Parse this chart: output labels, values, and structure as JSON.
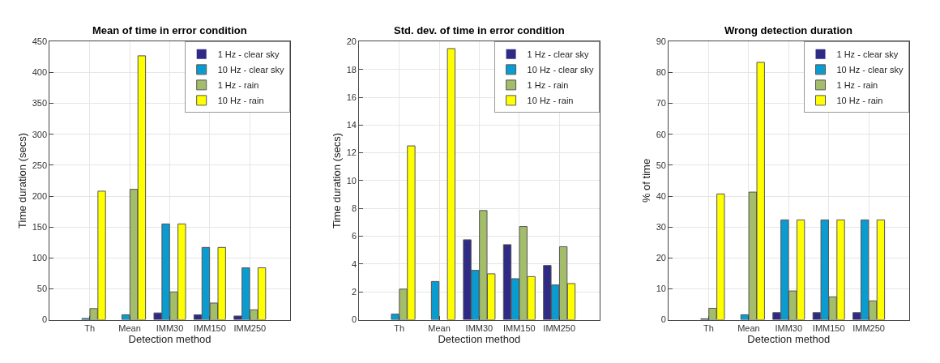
{
  "chart_data": [
    {
      "type": "bar",
      "title": "Mean of time in error condition",
      "xlabel": "Detection method",
      "ylabel": "Time duration (secs)",
      "categories": [
        "Th",
        "Mean",
        "IMM30",
        "IMM150",
        "IMM250"
      ],
      "ylim": [
        0,
        450
      ],
      "yticks": [
        0,
        50,
        100,
        150,
        200,
        250,
        300,
        350,
        400,
        450
      ],
      "grid": true,
      "legend": "top right",
      "series": [
        {
          "name": "1 Hz - clear sky",
          "color": "#2e2a86",
          "values": [
            0,
            0,
            11,
            8,
            6
          ]
        },
        {
          "name": "10 Hz - clear sky",
          "color": "#0a9bd0",
          "values": [
            2,
            8,
            155,
            117,
            84
          ]
        },
        {
          "name": "1 Hz - rain",
          "color": "#a3bd6a",
          "values": [
            18,
            211,
            45,
            27,
            16
          ]
        },
        {
          "name": "10 Hz - rain",
          "color": "#ffff00",
          "values": [
            208,
            427,
            155,
            117,
            84
          ]
        }
      ]
    },
    {
      "type": "bar",
      "title": "Std. dev. of time in error condition",
      "xlabel": "Detection method",
      "ylabel": "Time duration (secs)",
      "categories": [
        "Th",
        "Mean",
        "IMM30",
        "IMM150",
        "IMM250"
      ],
      "ylim": [
        0,
        20
      ],
      "yticks": [
        0,
        2,
        4,
        6,
        8,
        10,
        12,
        14,
        16,
        18,
        20
      ],
      "grid": true,
      "legend": "top right",
      "series": [
        {
          "name": "1 Hz - clear sky",
          "color": "#2e2a86",
          "values": [
            0,
            0,
            5.75,
            5.4,
            3.9
          ]
        },
        {
          "name": "10 Hz - clear sky",
          "color": "#0a9bd0",
          "values": [
            0.4,
            2.75,
            3.55,
            2.95,
            2.5
          ]
        },
        {
          "name": "1 Hz - rain",
          "color": "#a3bd6a",
          "values": [
            2.2,
            0,
            7.85,
            6.7,
            5.25
          ]
        },
        {
          "name": "10 Hz - rain",
          "color": "#ffff00",
          "values": [
            12.5,
            19.5,
            3.3,
            3.1,
            2.6
          ]
        }
      ]
    },
    {
      "type": "bar",
      "title": "Wrong detection duration",
      "xlabel": "Detection method",
      "ylabel": "% of time",
      "categories": [
        "Th",
        "Mean",
        "IMM30",
        "IMM150",
        "IMM250"
      ],
      "ylim": [
        0,
        90
      ],
      "yticks": [
        0,
        10,
        20,
        30,
        40,
        50,
        60,
        70,
        80,
        90
      ],
      "grid": true,
      "legend": "top right",
      "series": [
        {
          "name": "1 Hz - clear sky",
          "color": "#2e2a86",
          "values": [
            0,
            0,
            2.3,
            2.3,
            2.3
          ]
        },
        {
          "name": "10 Hz - clear sky",
          "color": "#0a9bd0",
          "values": [
            0.3,
            1.6,
            32.3,
            32.3,
            32.3
          ]
        },
        {
          "name": "1 Hz - rain",
          "color": "#a3bd6a",
          "values": [
            3.7,
            41.3,
            9.3,
            7.4,
            6.1
          ]
        },
        {
          "name": "10 Hz - rain",
          "color": "#ffff00",
          "values": [
            40.7,
            83.3,
            32.3,
            32.3,
            32.3
          ]
        }
      ]
    }
  ]
}
